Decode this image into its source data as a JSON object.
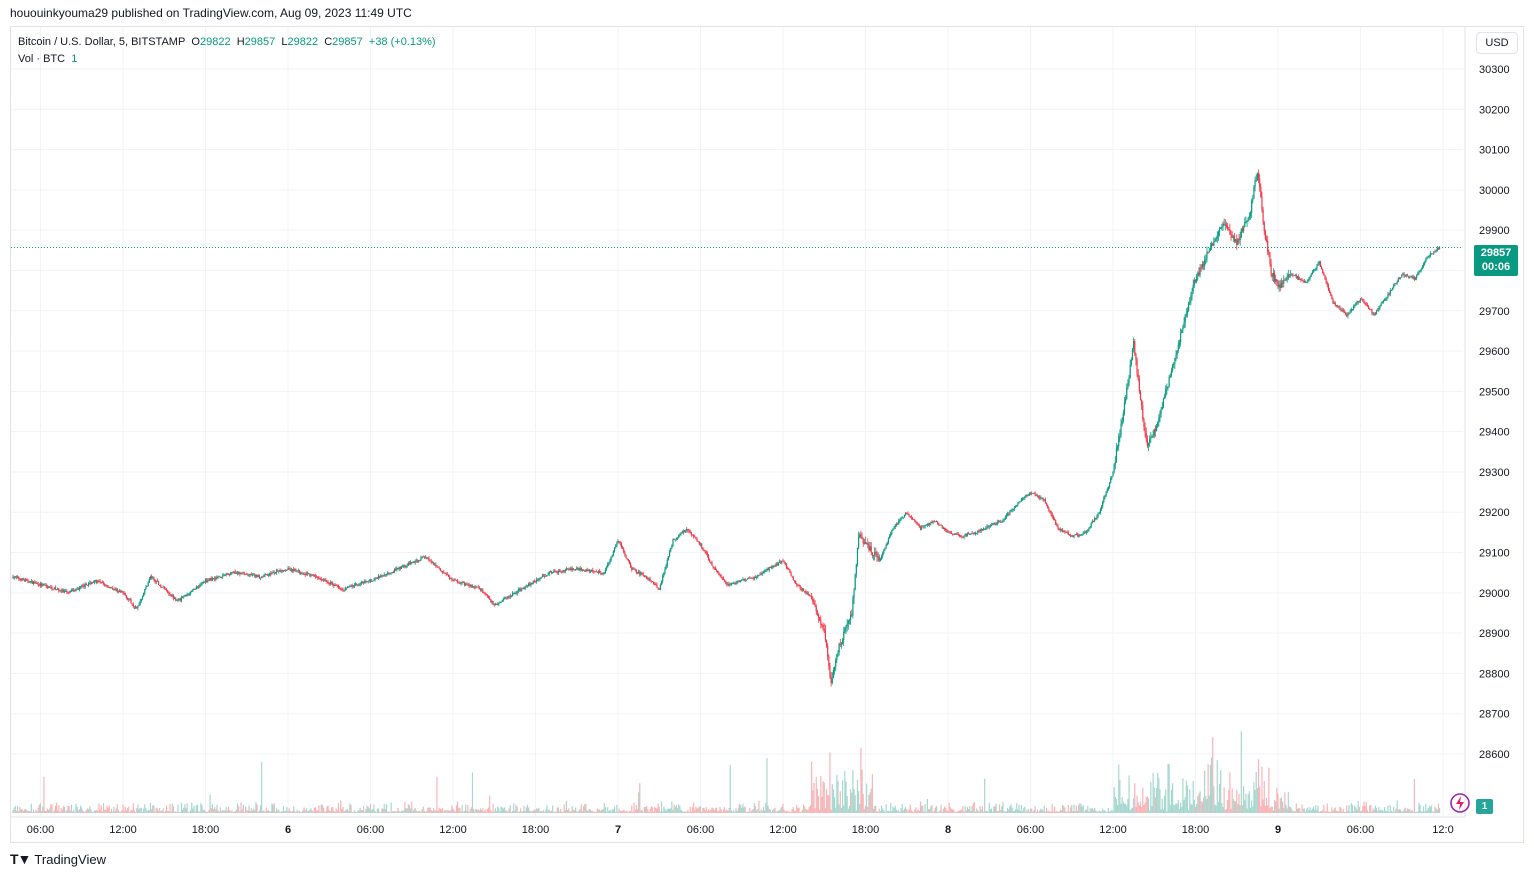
{
  "header": {
    "text": "hououinkyouma29 published on TradingView.com, Aug 09, 2023 11:49 UTC"
  },
  "legend": {
    "symbol": "Bitcoin / U.S. Dollar, 5, BITSTAMP",
    "o_label": "O",
    "o_value": "29822",
    "h_label": "H",
    "h_value": "29857",
    "l_label": "L",
    "l_value": "29822",
    "c_label": "C",
    "c_value": "29857",
    "change": "+38 (+0.13%)",
    "vol_label": "Vol · BTC",
    "vol_value": "1"
  },
  "currency_button": "USD",
  "last_price": {
    "value": "29857",
    "countdown": "00:06"
  },
  "volume_tag": "1",
  "footer": {
    "brand": "TradingView"
  },
  "colors": {
    "up": "#089981",
    "down": "#f23645",
    "up_vol": "#a7d8cf",
    "down_vol": "#f7b5b8",
    "grid": "#f0f3fa"
  },
  "chart_data": {
    "type": "candlestick",
    "symbol": "BTCUSD",
    "interval": "5",
    "y_axis": {
      "ticks": [
        28600,
        28700,
        28800,
        28900,
        29000,
        29100,
        29200,
        29300,
        29400,
        29500,
        29600,
        29700,
        29800,
        29900,
        30000,
        30100,
        30200,
        30300
      ]
    },
    "x_axis": {
      "ticks": [
        "06:00",
        "12:00",
        "18:00",
        "6",
        "06:00",
        "12:00",
        "18:00",
        "7",
        "06:00",
        "12:00",
        "18:00",
        "8",
        "06:00",
        "12:00",
        "18:00",
        "9",
        "06:00",
        "12:0"
      ]
    },
    "last_price": 29857,
    "price_path": [
      [
        "Aug 5 04:00",
        29040
      ],
      [
        "Aug 5 06:00",
        29020
      ],
      [
        "Aug 5 08:00",
        29000
      ],
      [
        "Aug 5 10:00",
        29030
      ],
      [
        "Aug 5 12:00",
        29000
      ],
      [
        "Aug 5 13:00",
        28960
      ],
      [
        "Aug 5 14:00",
        29040
      ],
      [
        "Aug 5 16:00",
        28980
      ],
      [
        "Aug 5 18:00",
        29030
      ],
      [
        "Aug 5 20:00",
        29050
      ],
      [
        "Aug 5 22:00",
        29040
      ],
      [
        "Aug 6 00:00",
        29060
      ],
      [
        "Aug 6 02:00",
        29040
      ],
      [
        "Aug 6 04:00",
        29010
      ],
      [
        "Aug 6 06:00",
        29030
      ],
      [
        "Aug 6 08:00",
        29060
      ],
      [
        "Aug 6 10:00",
        29090
      ],
      [
        "Aug 6 12:00",
        29030
      ],
      [
        "Aug 6 14:00",
        29010
      ],
      [
        "Aug 6 15:00",
        28970
      ],
      [
        "Aug 6 17:00",
        29010
      ],
      [
        "Aug 6 19:00",
        29050
      ],
      [
        "Aug 6 21:00",
        29060
      ],
      [
        "Aug 6 23:00",
        29050
      ],
      [
        "Aug 7 00:00",
        29130
      ],
      [
        "Aug 7 01:00",
        29060
      ],
      [
        "Aug 7 02:00",
        29040
      ],
      [
        "Aug 7 03:00",
        29010
      ],
      [
        "Aug 7 04:00",
        29130
      ],
      [
        "Aug 7 05:00",
        29160
      ],
      [
        "Aug 7 06:00",
        29120
      ],
      [
        "Aug 7 07:00",
        29060
      ],
      [
        "Aug 7 08:00",
        29020
      ],
      [
        "Aug 7 10:00",
        29040
      ],
      [
        "Aug 7 12:00",
        29080
      ],
      [
        "Aug 7 13:00",
        29020
      ],
      [
        "Aug 7 14:00",
        28990
      ],
      [
        "Aug 7 15:00",
        28900
      ],
      [
        "Aug 7 15:30",
        28780
      ],
      [
        "Aug 7 16:00",
        28860
      ],
      [
        "Aug 7 17:00",
        28950
      ],
      [
        "Aug 7 17:30",
        29140
      ],
      [
        "Aug 7 18:00",
        29120
      ],
      [
        "Aug 7 19:00",
        29080
      ],
      [
        "Aug 7 20:00",
        29160
      ],
      [
        "Aug 7 21:00",
        29200
      ],
      [
        "Aug 7 22:00",
        29160
      ],
      [
        "Aug 7 23:00",
        29180
      ],
      [
        "Aug 8 00:00",
        29150
      ],
      [
        "Aug 8 01:00",
        29140
      ],
      [
        "Aug 8 02:00",
        29150
      ],
      [
        "Aug 8 04:00",
        29180
      ],
      [
        "Aug 8 05:00",
        29220
      ],
      [
        "Aug 8 06:00",
        29250
      ],
      [
        "Aug 8 07:00",
        29230
      ],
      [
        "Aug 8 08:00",
        29160
      ],
      [
        "Aug 8 09:00",
        29140
      ],
      [
        "Aug 8 10:00",
        29150
      ],
      [
        "Aug 8 11:00",
        29200
      ],
      [
        "Aug 8 12:00",
        29300
      ],
      [
        "Aug 8 13:00",
        29500
      ],
      [
        "Aug 8 13:30",
        29620
      ],
      [
        "Aug 8 14:00",
        29480
      ],
      [
        "Aug 8 14:30",
        29360
      ],
      [
        "Aug 8 15:00",
        29400
      ],
      [
        "Aug 8 16:00",
        29520
      ],
      [
        "Aug 8 17:00",
        29650
      ],
      [
        "Aug 8 18:00",
        29780
      ],
      [
        "Aug 8 19:00",
        29850
      ],
      [
        "Aug 8 20:00",
        29920
      ],
      [
        "Aug 8 21:00",
        29870
      ],
      [
        "Aug 8 22:00",
        29950
      ],
      [
        "Aug 8 22:30",
        30050
      ],
      [
        "Aug 8 23:00",
        29900
      ],
      [
        "Aug 8 23:30",
        29800
      ],
      [
        "Aug 9 00:00",
        29760
      ],
      [
        "Aug 9 01:00",
        29790
      ],
      [
        "Aug 9 02:00",
        29770
      ],
      [
        "Aug 9 03:00",
        29820
      ],
      [
        "Aug 9 04:00",
        29720
      ],
      [
        "Aug 9 05:00",
        29690
      ],
      [
        "Aug 9 06:00",
        29730
      ],
      [
        "Aug 9 07:00",
        29690
      ],
      [
        "Aug 9 08:00",
        29740
      ],
      [
        "Aug 9 09:00",
        29790
      ],
      [
        "Aug 9 10:00",
        29780
      ],
      [
        "Aug 9 11:00",
        29840
      ],
      [
        "Aug 9 11:45",
        29857
      ]
    ]
  }
}
